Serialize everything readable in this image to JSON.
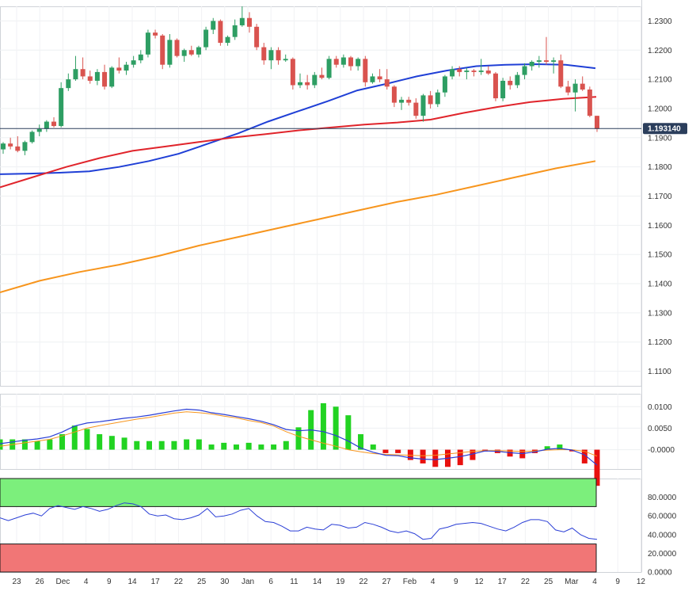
{
  "chart_data": [
    {
      "type": "candlestick",
      "title": "",
      "y_range": [
        1.105,
        1.235
      ],
      "y_ticks": [
        "1.2300",
        "1.2200",
        "1.2100",
        "1.2000",
        "1.1900",
        "1.1800",
        "1.1700",
        "1.1600",
        "1.1500",
        "1.1400",
        "1.1300",
        "1.1200",
        "1.1100"
      ],
      "x_ticks": [
        "23",
        "26",
        "Dec",
        "4",
        "9",
        "14",
        "17",
        "22",
        "25",
        "30",
        "Jan",
        "6",
        "11",
        "14",
        "19",
        "22",
        "27",
        "Feb",
        "4",
        "9",
        "12",
        "17",
        "22",
        "25",
        "Mar",
        "4",
        "9",
        "12"
      ],
      "last_price": "1.193140",
      "colors": {
        "up": "#2e9e63",
        "down": "#d9534f",
        "ma_fast": "#1f3fd6",
        "ma_mid": "#e0242b",
        "ma_slow": "#f7951d",
        "price_tag": "#2b3e5c"
      },
      "moving_averages": [
        {
          "kind": "ma_fast",
          "points": [
            1.1775,
            1.1777,
            1.178,
            1.1785,
            1.18,
            1.182,
            1.1845,
            1.188,
            1.1915,
            1.1955,
            1.199,
            1.2025,
            1.2062,
            1.2085,
            1.211,
            1.213,
            1.2145,
            1.215,
            1.2152,
            1.215,
            1.2138
          ]
        },
        {
          "kind": "ma_mid",
          "points": [
            1.173,
            1.1765,
            1.18,
            1.183,
            1.1855,
            1.187,
            1.1885,
            1.19,
            1.1912,
            1.1925,
            1.1935,
            1.1945,
            1.1952,
            1.1962,
            1.1985,
            1.2005,
            1.2022,
            1.2033,
            1.204
          ]
        },
        {
          "kind": "ma_slow",
          "points": [
            1.137,
            1.141,
            1.144,
            1.1465,
            1.1495,
            1.153,
            1.156,
            1.159,
            1.162,
            1.165,
            1.168,
            1.1705,
            1.1735,
            1.1765,
            1.1795,
            1.182
          ]
        }
      ],
      "candles": [
        [
          1.186,
          1.1885,
          1.1845,
          1.188
        ],
        [
          1.188,
          1.19,
          1.186,
          1.187
        ],
        [
          1.187,
          1.1905,
          1.185,
          1.1855
        ],
        [
          1.1855,
          1.189,
          1.184,
          1.1885
        ],
        [
          1.1885,
          1.1925,
          1.188,
          1.192
        ],
        [
          1.192,
          1.1945,
          1.1905,
          1.193
        ],
        [
          1.193,
          1.196,
          1.192,
          1.1955
        ],
        [
          1.1955,
          1.197,
          1.1935,
          1.194
        ],
        [
          1.194,
          1.209,
          1.1935,
          1.207
        ],
        [
          1.207,
          1.212,
          1.206,
          1.21
        ],
        [
          1.21,
          1.218,
          1.2095,
          1.2135
        ],
        [
          1.2135,
          1.2175,
          1.21,
          1.211
        ],
        [
          1.211,
          1.213,
          1.2085,
          1.2095
        ],
        [
          1.2095,
          1.2135,
          1.208,
          1.2125
        ],
        [
          1.2125,
          1.215,
          1.2065,
          1.2075
        ],
        [
          1.2075,
          1.2145,
          1.207,
          1.214
        ],
        [
          1.214,
          1.2175,
          1.212,
          1.213
        ],
        [
          1.213,
          1.216,
          1.2115,
          1.215
        ],
        [
          1.215,
          1.218,
          1.214,
          1.2165
        ],
        [
          1.2165,
          1.22,
          1.2155,
          1.2185
        ],
        [
          1.2185,
          1.227,
          1.2175,
          1.226
        ],
        [
          1.226,
          1.227,
          1.224,
          1.225
        ],
        [
          1.225,
          1.2255,
          1.2135,
          1.215
        ],
        [
          1.215,
          1.2255,
          1.214,
          1.2235
        ],
        [
          1.2235,
          1.224,
          1.2175,
          1.218
        ],
        [
          1.218,
          1.2205,
          1.216,
          1.22
        ],
        [
          1.22,
          1.2215,
          1.218,
          1.2185
        ],
        [
          1.2185,
          1.2215,
          1.2175,
          1.221
        ],
        [
          1.221,
          1.228,
          1.22,
          1.227
        ],
        [
          1.227,
          1.231,
          1.2255,
          1.23
        ],
        [
          1.23,
          1.2305,
          1.2215,
          1.2225
        ],
        [
          1.2225,
          1.225,
          1.2215,
          1.2245
        ],
        [
          1.2245,
          1.2305,
          1.2235,
          1.2285
        ],
        [
          1.2285,
          1.235,
          1.228,
          1.231
        ],
        [
          1.231,
          1.233,
          1.226,
          1.228
        ],
        [
          1.228,
          1.229,
          1.22,
          1.221
        ],
        [
          1.221,
          1.2225,
          1.215,
          1.2165
        ],
        [
          1.2165,
          1.221,
          1.2135,
          1.22
        ],
        [
          1.22,
          1.221,
          1.215,
          1.2165
        ],
        [
          1.2165,
          1.2185,
          1.216,
          1.217
        ],
        [
          1.217,
          1.2175,
          1.2065,
          1.208
        ],
        [
          1.208,
          1.212,
          1.207,
          1.209
        ],
        [
          1.209,
          1.2115,
          1.2065,
          1.208
        ],
        [
          1.208,
          1.2125,
          1.207,
          1.2115
        ],
        [
          1.2115,
          1.214,
          1.21,
          1.2105
        ],
        [
          1.2105,
          1.218,
          1.21,
          1.217
        ],
        [
          1.217,
          1.218,
          1.214,
          1.215
        ],
        [
          1.215,
          1.2185,
          1.214,
          1.2175
        ],
        [
          1.2175,
          1.218,
          1.213,
          1.2145
        ],
        [
          1.2145,
          1.2175,
          1.213,
          1.217
        ],
        [
          1.217,
          1.218,
          1.2075,
          1.209
        ],
        [
          1.209,
          1.212,
          1.2085,
          1.211
        ],
        [
          1.211,
          1.2135,
          1.209,
          1.21
        ],
        [
          1.21,
          1.2135,
          1.2065,
          1.2075
        ],
        [
          1.2075,
          1.208,
          1.2005,
          1.202
        ],
        [
          1.202,
          1.204,
          1.1995,
          1.203
        ],
        [
          1.203,
          1.204,
          1.201,
          1.202
        ],
        [
          1.202,
          1.2035,
          1.1965,
          1.1975
        ],
        [
          1.1975,
          1.205,
          1.1955,
          1.2045
        ],
        [
          1.2045,
          1.206,
          1.2,
          1.2015
        ],
        [
          1.2015,
          1.2065,
          1.2005,
          1.2055
        ],
        [
          1.2055,
          1.2115,
          1.204,
          1.211
        ],
        [
          1.211,
          1.2145,
          1.21,
          1.2135
        ],
        [
          1.2135,
          1.2145,
          1.211,
          1.2125
        ],
        [
          1.2125,
          1.214,
          1.21,
          1.213
        ],
        [
          1.213,
          1.2135,
          1.211,
          1.2125
        ],
        [
          1.2125,
          1.217,
          1.2115,
          1.213
        ],
        [
          1.213,
          1.2145,
          1.2115,
          1.212
        ],
        [
          1.212,
          1.2125,
          1.2025,
          1.2035
        ],
        [
          1.2035,
          1.2105,
          1.2025,
          1.2095
        ],
        [
          1.2095,
          1.211,
          1.2065,
          1.208
        ],
        [
          1.208,
          1.2125,
          1.207,
          1.2115
        ],
        [
          1.2115,
          1.2155,
          1.21,
          1.2145
        ],
        [
          1.2145,
          1.2165,
          1.213,
          1.216
        ],
        [
          1.216,
          1.218,
          1.214,
          1.2165
        ],
        [
          1.2165,
          1.2245,
          1.215,
          1.216
        ],
        [
          1.216,
          1.2175,
          1.212,
          1.2165
        ],
        [
          1.2165,
          1.2185,
          1.207,
          1.2075
        ],
        [
          1.2075,
          1.2095,
          1.2045,
          1.2055
        ],
        [
          1.2055,
          1.21,
          1.199,
          1.2085
        ],
        [
          1.2085,
          1.211,
          1.206,
          1.2065
        ],
        [
          1.2065,
          1.2075,
          1.197,
          1.1975
        ],
        [
          1.1975,
          1.1975,
          1.192,
          1.193
        ]
      ]
    },
    {
      "type": "line",
      "y_range": [
        -0.0045,
        0.013
      ],
      "y_ticks": [
        "0.0100",
        "0.0050",
        "-0.0000"
      ],
      "series": [
        {
          "kind": "macd",
          "points": [
            0.0014,
            0.0018,
            0.0022,
            0.0025,
            0.003,
            0.0041,
            0.0055,
            0.0062,
            0.0065,
            0.0069,
            0.0073,
            0.0076,
            0.008,
            0.0085,
            0.009,
            0.0094,
            0.0092,
            0.0086,
            0.0082,
            0.0077,
            0.0072,
            0.0066,
            0.0058,
            0.0047,
            0.0044,
            0.0046,
            0.0042,
            0.0033,
            0.002,
            0.0004,
            -0.0006,
            -0.0013,
            -0.0014,
            -0.0019,
            -0.0022,
            -0.0023,
            -0.002,
            -0.0016,
            -0.001,
            -0.0003,
            -0.0004,
            -0.0007,
            -0.0009,
            -0.0005,
            0.0001,
            0.0003,
            -0.0001,
            -0.0012,
            -0.0036
          ]
        },
        {
          "kind": "signal",
          "points": [
            0.0008,
            0.0012,
            0.0016,
            0.002,
            0.0024,
            0.0032,
            0.0041,
            0.005,
            0.0056,
            0.0061,
            0.0066,
            0.0071,
            0.0075,
            0.008,
            0.0085,
            0.0088,
            0.0086,
            0.0083,
            0.0078,
            0.0074,
            0.0068,
            0.0063,
            0.0055,
            0.0042,
            0.0031,
            0.0023,
            0.0015,
            0.0008,
            0.0,
            -0.0005,
            -0.0009,
            -0.0011,
            -0.0012,
            -0.0013,
            -0.0014,
            -0.0013,
            -0.001,
            -0.0007,
            -0.0004,
            -0.0002,
            -0.0002,
            -0.0003,
            -0.0004,
            -0.0003,
            -0.0001,
            0.0,
            0.0,
            -0.0004,
            -0.0015
          ]
        }
      ]
    },
    {
      "type": "line",
      "y_range": [
        0,
        100
      ],
      "y_ticks": [
        "80.0000",
        "60.0000",
        "40.0000",
        "20.0000",
        "0.0000"
      ],
      "overbought": 70,
      "oversold": 30,
      "colors": {
        "overbought": "#7cef7c",
        "oversold": "#f17676",
        "line": "#2b3fd6"
      },
      "series": [
        {
          "kind": "rsi",
          "points": [
            58,
            55,
            58,
            61,
            63,
            60,
            68,
            71,
            69,
            67,
            70,
            68,
            65,
            67,
            71,
            74,
            73,
            70,
            62,
            60,
            61,
            57,
            56,
            58,
            61,
            68,
            59,
            60,
            62,
            66,
            68,
            60,
            54,
            53,
            49,
            44,
            44,
            48,
            46,
            45,
            51,
            50,
            47,
            48,
            53,
            51,
            48,
            44,
            42,
            44,
            41,
            35,
            36,
            46,
            48,
            51,
            52,
            53,
            52,
            49,
            46,
            44,
            48,
            53,
            56,
            56,
            54,
            45,
            43,
            47,
            40,
            36,
            35
          ]
        }
      ]
    }
  ],
  "x_axis": {
    "labels": [
      "23",
      "26",
      "Dec",
      "4",
      "9",
      "14",
      "17",
      "22",
      "25",
      "30",
      "Jan",
      "6",
      "11",
      "14",
      "19",
      "22",
      "27",
      "Feb",
      "4",
      "9",
      "12",
      "17",
      "22",
      "25",
      "Mar",
      "4",
      "9",
      "12"
    ]
  }
}
